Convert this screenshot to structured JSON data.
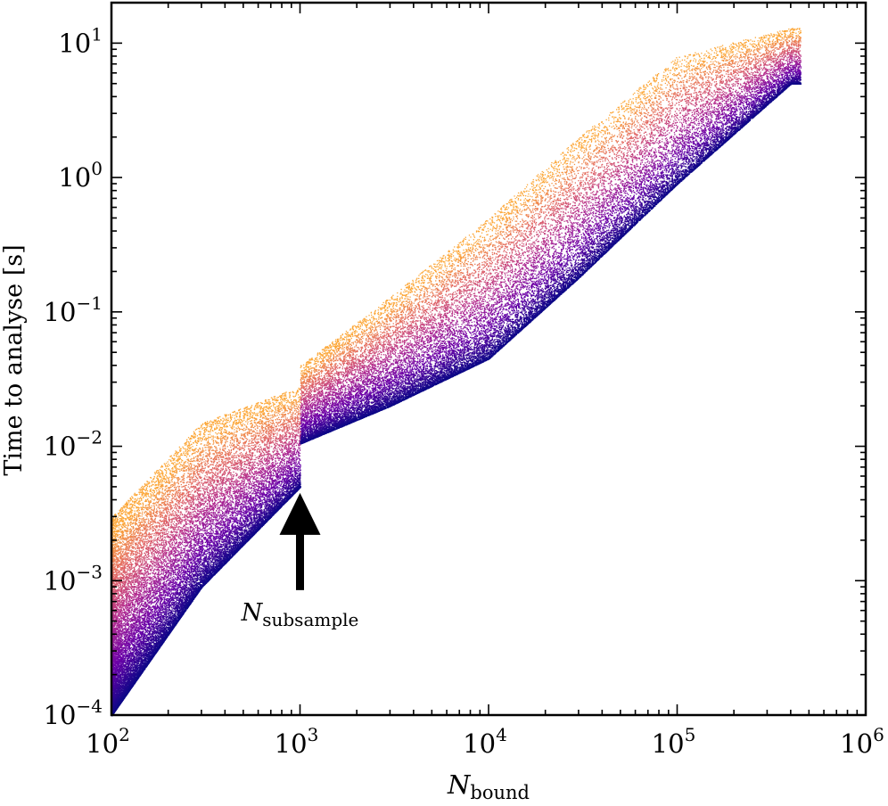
{
  "chart_data": {
    "type": "scatter",
    "title": "",
    "xlabel": "N",
    "xlabel_sub": "bound",
    "ylabel": "Time to analyse [s]",
    "x_scale": "log",
    "y_scale": "log",
    "xlim": [
      100,
      1000000
    ],
    "ylim": [
      0.0001,
      20
    ],
    "grid": false,
    "legend": "none",
    "x_ticks": [
      {
        "value": 100,
        "base": "10",
        "exp": "2"
      },
      {
        "value": 1000,
        "base": "10",
        "exp": "3"
      },
      {
        "value": 10000,
        "base": "10",
        "exp": "4"
      },
      {
        "value": 100000,
        "base": "10",
        "exp": "5"
      },
      {
        "value": 1000000,
        "base": "10",
        "exp": "6"
      }
    ],
    "y_ticks": [
      {
        "value": 0.0001,
        "base": "10",
        "exp": "−4"
      },
      {
        "value": 0.001,
        "base": "10",
        "exp": "−3"
      },
      {
        "value": 0.01,
        "base": "10",
        "exp": "−2"
      },
      {
        "value": 0.1,
        "base": "10",
        "exp": "−1"
      },
      {
        "value": 1,
        "base": "10",
        "exp": "0"
      },
      {
        "value": 10,
        "base": "10",
        "exp": "1"
      }
    ],
    "colormap": [
      "#0d0887",
      "#6a00a8",
      "#b12a90",
      "#e16462",
      "#fca636"
    ],
    "annotation": {
      "text": "N",
      "subscript": "subsample",
      "arrow_target": [
        1000,
        0.0045
      ],
      "arrow_tail": [
        1000,
        0.00085
      ]
    },
    "trend_envelope": {
      "x": [
        100,
        300,
        1000,
        1000,
        3000,
        10000,
        30000,
        100000,
        400000
      ],
      "y_lower": [
        0.0001,
        0.0009,
        0.005,
        0.0105,
        0.02,
        0.045,
        0.18,
        0.9,
        5.0
      ],
      "y_upper": [
        0.003,
        0.015,
        0.028,
        0.04,
        0.13,
        0.5,
        2.0,
        8.0,
        13.0
      ]
    },
    "points_described": "roughly 60k scatter points, density shown by color"
  }
}
